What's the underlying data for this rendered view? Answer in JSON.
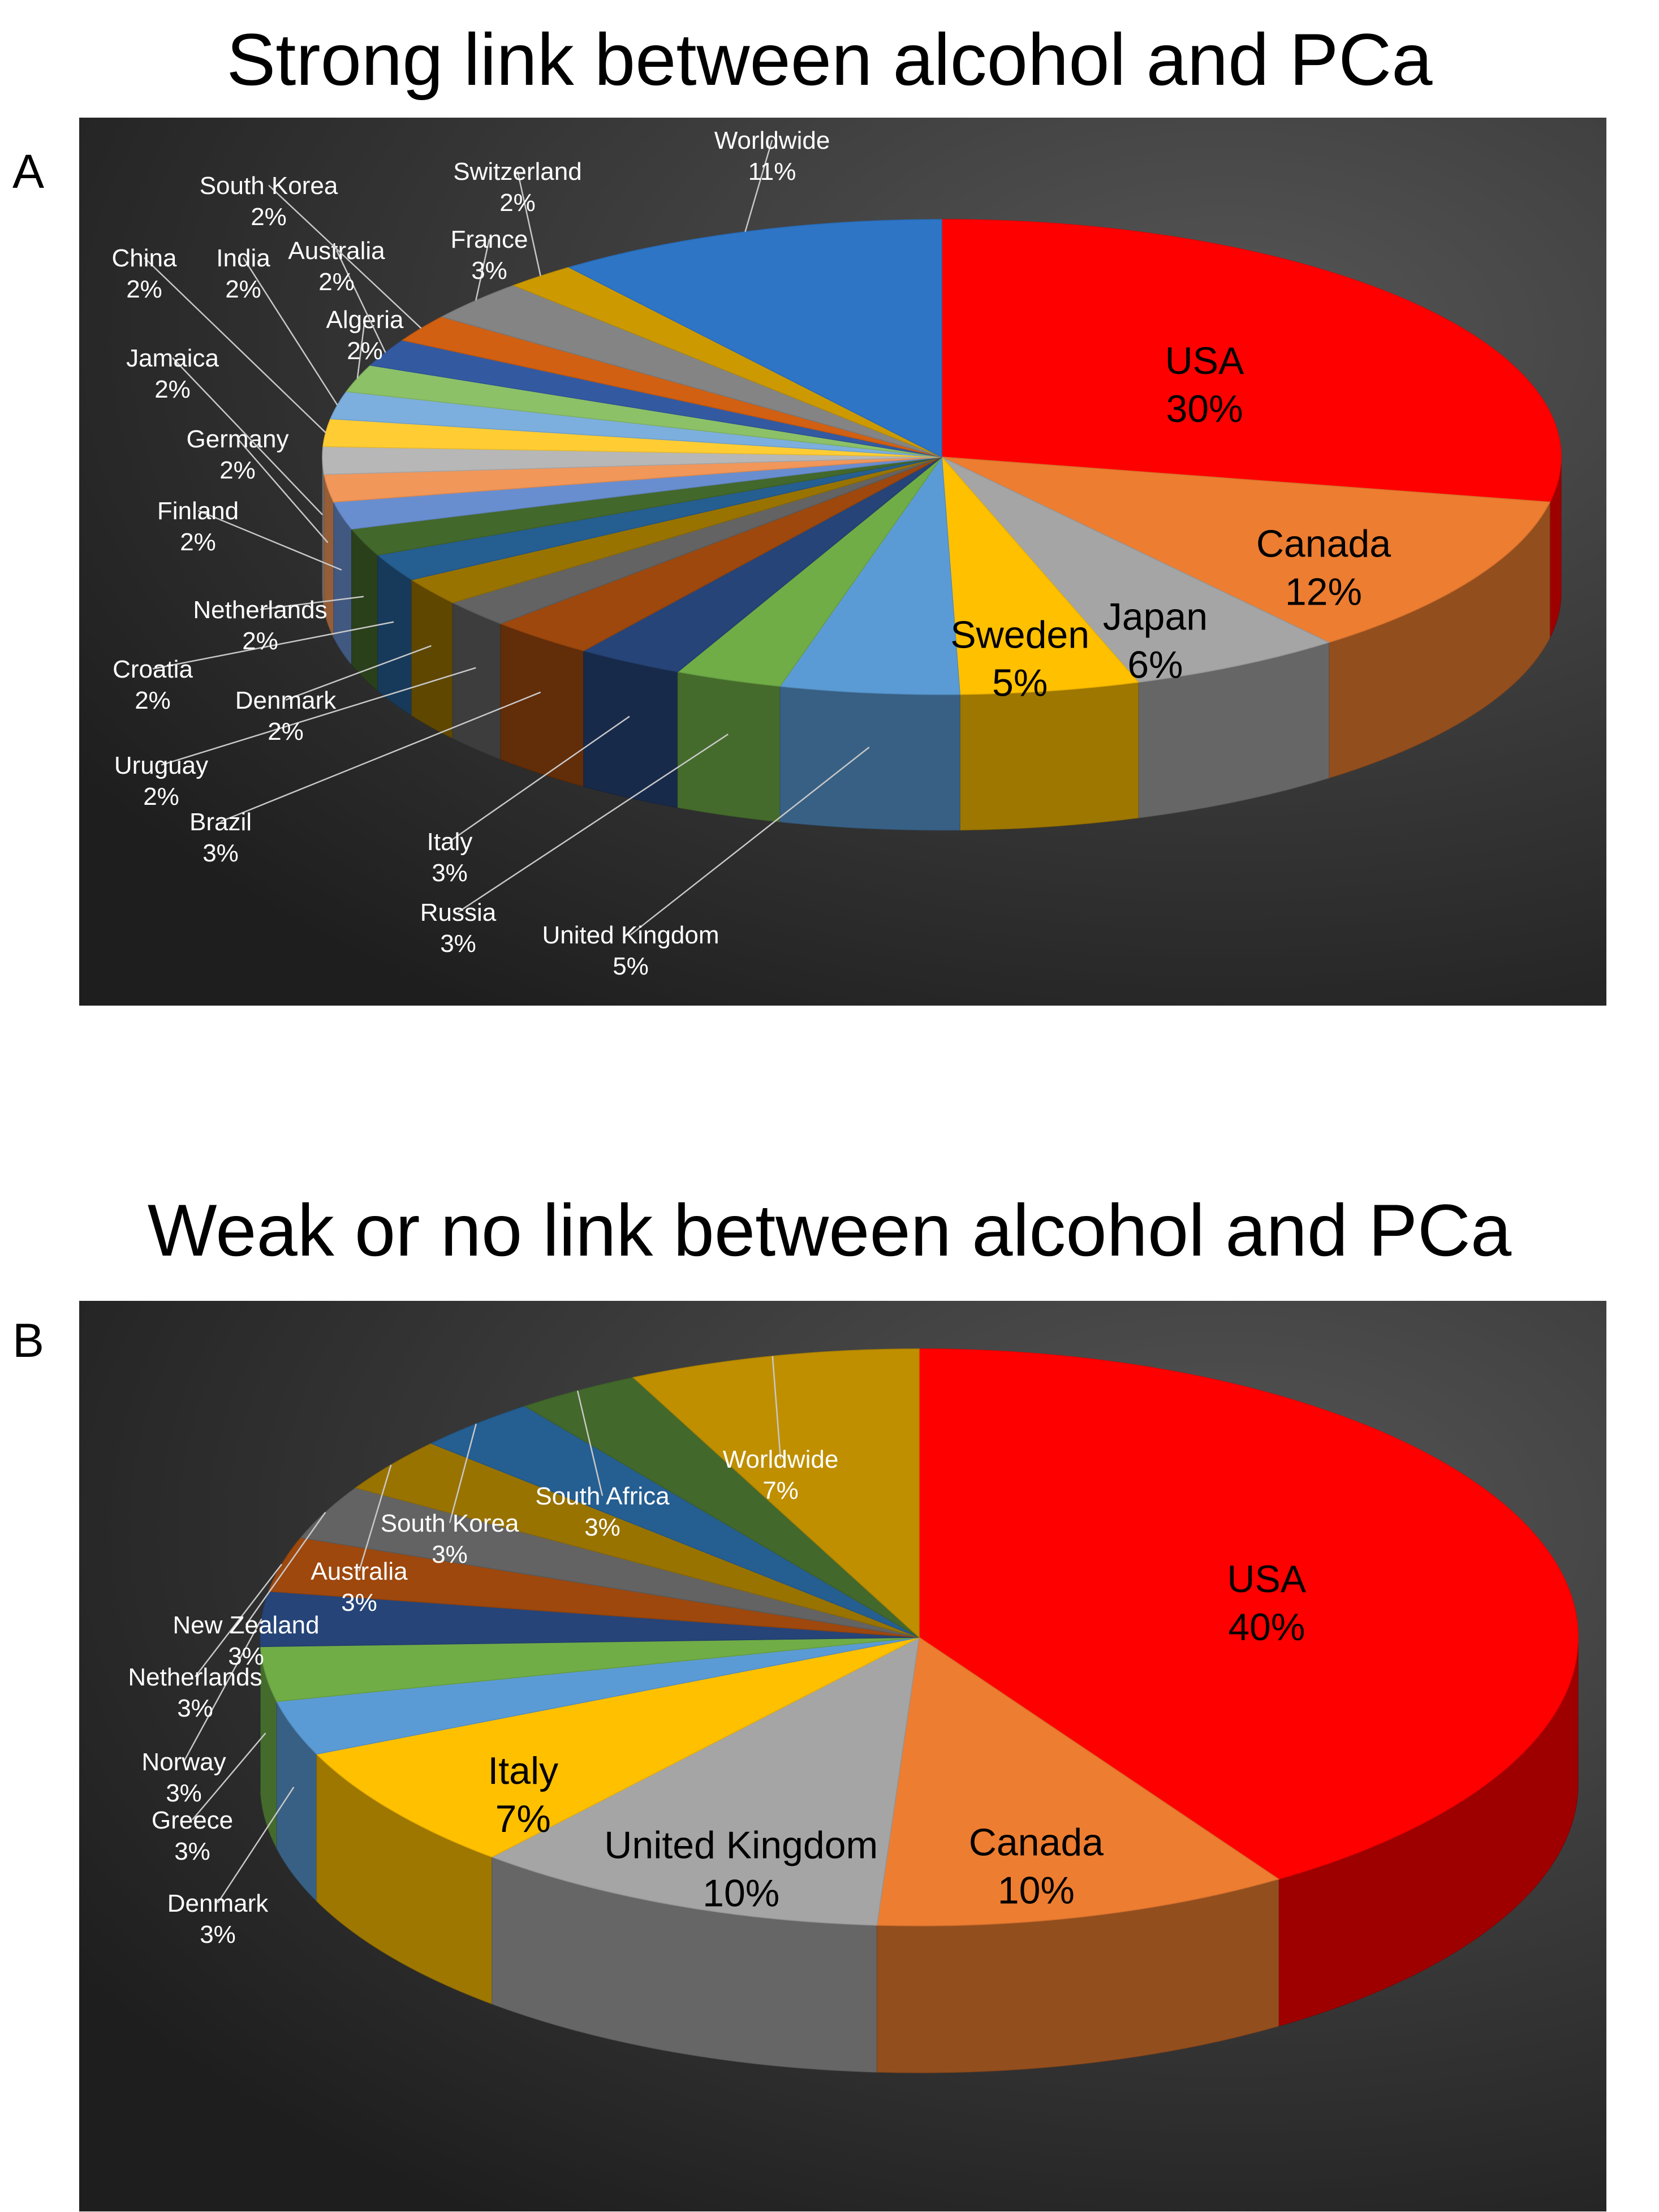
{
  "page": {
    "background": "#ffffff",
    "panel_background": [
      "#565656",
      "#1e1e1e"
    ]
  },
  "chart_data": [
    {
      "panel": "A",
      "title": "Strong link between alcohol and PCa",
      "type": "pie",
      "style": "3d-exploded-tilted",
      "slices": [
        {
          "label": "USA",
          "value": 30,
          "value_label": "30%",
          "color": "#ff0000",
          "label_color": "#000000",
          "label_inside": true
        },
        {
          "label": "Canada",
          "value": 12,
          "value_label": "12%",
          "color": "#ed7d31",
          "label_color": "#000000",
          "label_inside": true
        },
        {
          "label": "Japan",
          "value": 6,
          "value_label": "6%",
          "color": "#a5a5a5",
          "label_color": "#000000",
          "label_inside": true
        },
        {
          "label": "Sweden",
          "value": 5,
          "value_label": "5%",
          "color": "#ffc000",
          "label_color": "#000000",
          "label_inside": true
        },
        {
          "label": "United Kingdom",
          "value": 5,
          "value_label": "5%",
          "color": "#5b9bd5",
          "label_color": "#ffffff",
          "label_inside": false
        },
        {
          "label": "Russia",
          "value": 3,
          "value_label": "3%",
          "color": "#70ad47",
          "label_color": "#ffffff",
          "label_inside": false
        },
        {
          "label": "Italy",
          "value": 3,
          "value_label": "3%",
          "color": "#264478",
          "label_color": "#ffffff",
          "label_inside": false
        },
        {
          "label": "Brazil",
          "value": 3,
          "value_label": "3%",
          "color": "#9e480e",
          "label_color": "#ffffff",
          "label_inside": false
        },
        {
          "label": "Uruguay",
          "value": 2,
          "value_label": "2%",
          "color": "#636363",
          "label_color": "#ffffff",
          "label_inside": false
        },
        {
          "label": "Denmark",
          "value": 2,
          "value_label": "2%",
          "color": "#997300",
          "label_color": "#ffffff",
          "label_inside": false
        },
        {
          "label": "Croatia",
          "value": 2,
          "value_label": "2%",
          "color": "#255e91",
          "label_color": "#ffffff",
          "label_inside": false
        },
        {
          "label": "Netherlands",
          "value": 2,
          "value_label": "2%",
          "color": "#43682b",
          "label_color": "#ffffff",
          "label_inside": false
        },
        {
          "label": "Finland",
          "value": 2,
          "value_label": "2%",
          "color": "#698ed0",
          "label_color": "#ffffff",
          "label_inside": false
        },
        {
          "label": "Germany",
          "value": 2,
          "value_label": "2%",
          "color": "#f1975a",
          "label_color": "#ffffff",
          "label_inside": false
        },
        {
          "label": "Jamaica",
          "value": 2,
          "value_label": "2%",
          "color": "#b7b7b7",
          "label_color": "#ffffff",
          "label_inside": false
        },
        {
          "label": "China",
          "value": 2,
          "value_label": "2%",
          "color": "#ffcd33",
          "label_color": "#ffffff",
          "label_inside": false
        },
        {
          "label": "India",
          "value": 2,
          "value_label": "2%",
          "color": "#7cafdd",
          "label_color": "#ffffff",
          "label_inside": false
        },
        {
          "label": "Algeria",
          "value": 2,
          "value_label": "2%",
          "color": "#8cc168",
          "label_color": "#ffffff",
          "label_inside": false
        },
        {
          "label": "Australia",
          "value": 2,
          "value_label": "2%",
          "color": "#335aa1",
          "label_color": "#ffffff",
          "label_inside": false
        },
        {
          "label": "South Korea",
          "value": 2,
          "value_label": "2%",
          "color": "#d26012",
          "label_color": "#ffffff",
          "label_inside": false
        },
        {
          "label": "France",
          "value": 3,
          "value_label": "3%",
          "color": "#848484",
          "label_color": "#ffffff",
          "label_inside": false
        },
        {
          "label": "Switzerland",
          "value": 2,
          "value_label": "2%",
          "color": "#cc9a00",
          "label_color": "#ffffff",
          "label_inside": false
        },
        {
          "label": "Worldwide",
          "value": 11,
          "value_label": "11%",
          "color": "#2e75c6",
          "label_color": "#ffffff",
          "label_inside": false
        }
      ]
    },
    {
      "panel": "B",
      "title": "Weak or no link between alcohol and PCa",
      "type": "pie",
      "style": "3d-exploded-tilted",
      "slices": [
        {
          "label": "USA",
          "value": 40,
          "value_label": "40%",
          "color": "#ff0000",
          "label_color": "#000000",
          "label_inside": true
        },
        {
          "label": "Canada",
          "value": 10,
          "value_label": "10%",
          "color": "#ed7d31",
          "label_color": "#000000",
          "label_inside": true
        },
        {
          "label": "United  Kingdom",
          "value": 10,
          "value_label": "10%",
          "color": "#a5a5a5",
          "label_color": "#000000",
          "label_inside": true
        },
        {
          "label": "Italy",
          "value": 7,
          "value_label": "7%",
          "color": "#ffc000",
          "label_color": "#000000",
          "label_inside": true
        },
        {
          "label": "Denmark",
          "value": 3,
          "value_label": "3%",
          "color": "#5b9bd5",
          "label_color": "#ffffff",
          "label_inside": false
        },
        {
          "label": "Greece",
          "value": 3,
          "value_label": "3%",
          "color": "#70ad47",
          "label_color": "#ffffff",
          "label_inside": false
        },
        {
          "label": "Norway",
          "value": 3,
          "value_label": "3%",
          "color": "#264478",
          "label_color": "#ffffff",
          "label_inside": false
        },
        {
          "label": "Netherlands",
          "value": 3,
          "value_label": "3%",
          "color": "#9e480e",
          "label_color": "#ffffff",
          "label_inside": false
        },
        {
          "label": "New Zealand",
          "value": 3,
          "value_label": "3%",
          "color": "#636363",
          "label_color": "#ffffff",
          "label_inside": false
        },
        {
          "label": "Australia",
          "value": 3,
          "value_label": "3%",
          "color": "#997300",
          "label_color": "#ffffff",
          "label_inside": false
        },
        {
          "label": "South Korea",
          "value": 3,
          "value_label": "3%",
          "color": "#255e91",
          "label_color": "#ffffff",
          "label_inside": false
        },
        {
          "label": "South Africa",
          "value": 3,
          "value_label": "3%",
          "color": "#43682b",
          "label_color": "#ffffff",
          "label_inside": false
        },
        {
          "label": "Worldwide",
          "value": 7,
          "value_label": "7%",
          "color": "#bf8f00",
          "label_color": "#ffffff",
          "label_inside": false
        }
      ]
    }
  ]
}
